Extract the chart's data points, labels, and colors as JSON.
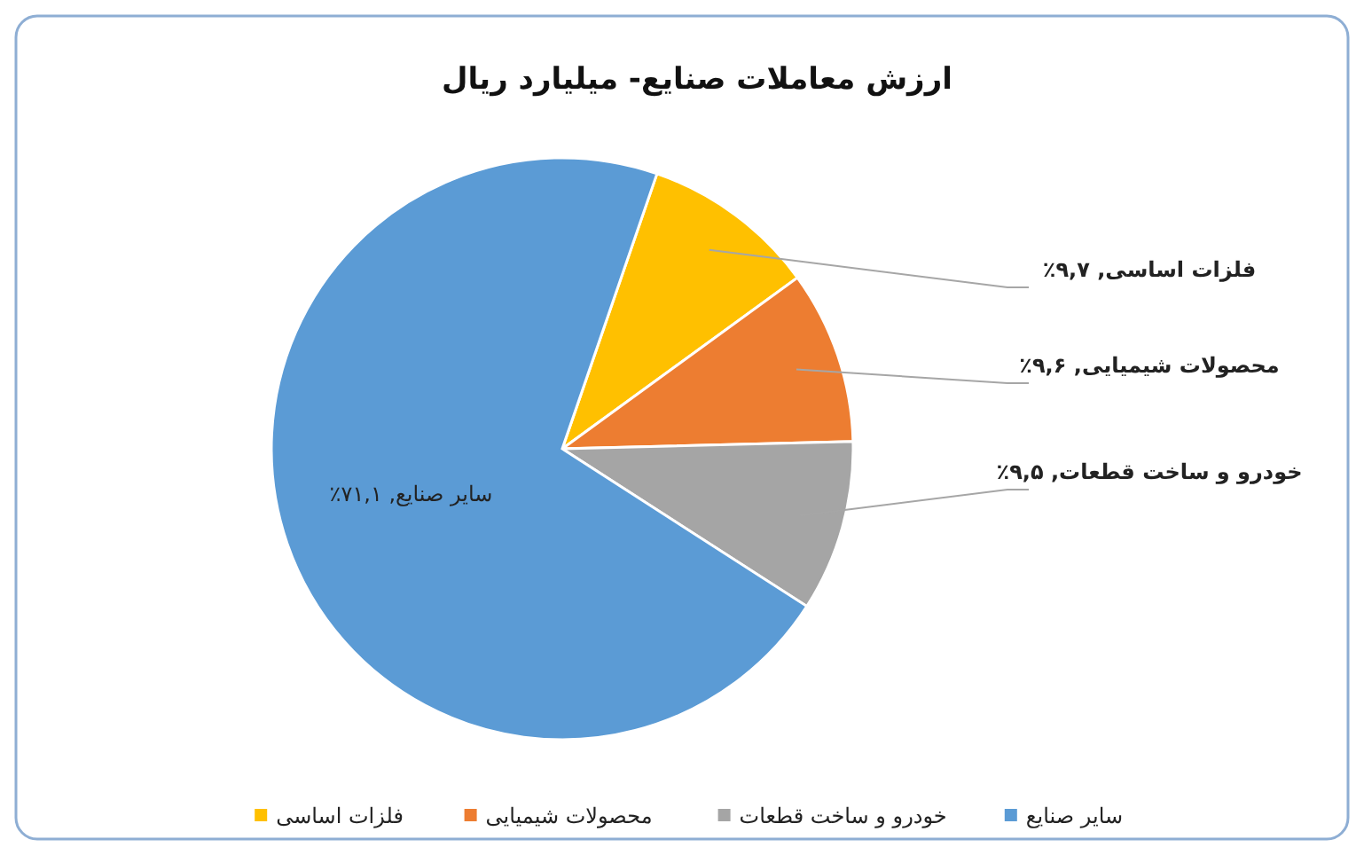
{
  "chart_data": {
    "type": "pie",
    "title": "ارزش معاملات صنایع- میلیارد ریال",
    "categories": [
      "فلزات اساسی",
      "محصولات شیمیایی",
      "خودرو و ساخت قطعات",
      "سایر صنایع"
    ],
    "values": [
      9.7,
      9.6,
      9.5,
      71.1
    ],
    "colors": [
      "#ffc000",
      "#ed7d31",
      "#a5a5a5",
      "#5b9bd5"
    ],
    "value_labels": [
      "فلزات اساسی, ۹,۷٪",
      "محصولات شیمیایی, ۹,۶٪",
      "خودرو و ساخت قطعات, ۹,۵٪",
      "سایر صنایع, ۷۱,۱٪"
    ],
    "legend": "bottom"
  }
}
